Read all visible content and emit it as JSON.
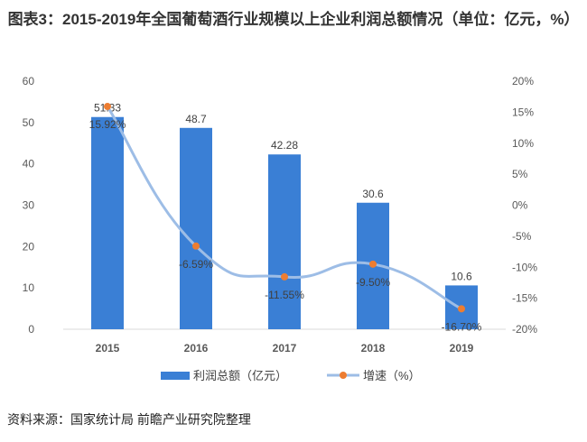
{
  "title": "图表3：2015-2019年全国葡萄酒行业规模以上企业利润总额情况（单位：亿元，%）",
  "source": "资料来源：国家统计局 前瞻产业研究院整理",
  "chart_data": {
    "type": "bar",
    "categories": [
      "2015",
      "2016",
      "2017",
      "2018",
      "2019"
    ],
    "series": [
      {
        "name": "利润总额（亿元）",
        "type": "bar",
        "axis": "left",
        "values": [
          51.33,
          48.7,
          42.28,
          30.6,
          10.6
        ],
        "labels": [
          "51.33",
          "48.7",
          "42.28",
          "30.6",
          "10.6"
        ],
        "color": "#3a7fd5"
      },
      {
        "name": "增速（%）",
        "type": "line",
        "smooth": true,
        "axis": "right",
        "values": [
          15.92,
          -6.59,
          -11.55,
          -9.5,
          -16.7
        ],
        "labels": [
          "15.92%",
          "-6.59%",
          "-11.55%",
          "-9.50%",
          "-16.70%"
        ],
        "color": "#9dbde6",
        "marker_color": "#ed7d31"
      }
    ],
    "yleft": {
      "range": [
        0,
        60
      ],
      "ticks": [
        "0",
        "10",
        "20",
        "30",
        "40",
        "50",
        "60"
      ]
    },
    "yright": {
      "range": [
        -20,
        20
      ],
      "ticks": [
        "-20%",
        "-15%",
        "-10%",
        "-5%",
        "0%",
        "5%",
        "10%",
        "15%",
        "20%"
      ]
    },
    "grid": false,
    "legend": "bottom"
  }
}
